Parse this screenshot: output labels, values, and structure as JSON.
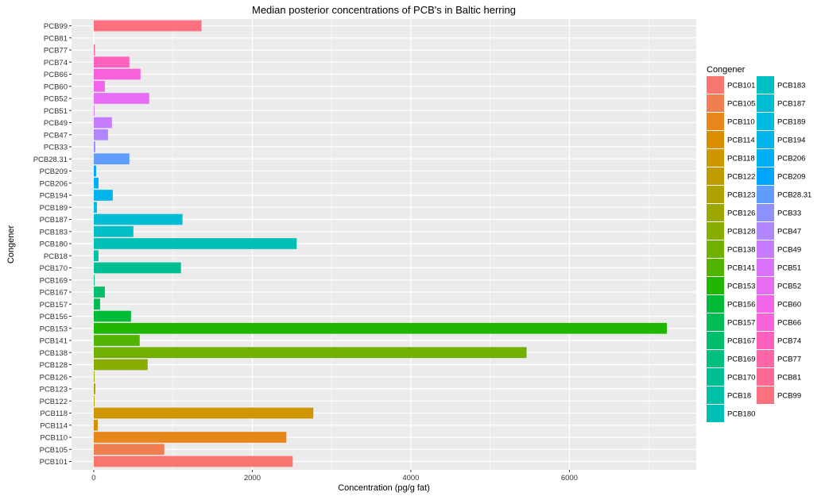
{
  "chart_data": {
    "type": "bar",
    "orientation": "horizontal",
    "title": "Median posterior concentrations of PCB's in Baltic herring",
    "xlabel": "Concentration (pg/g fat)",
    "ylabel": "Congener",
    "xlim": [
      -280,
      7600
    ],
    "xticks": [
      "0",
      "2000",
      "4000",
      "6000"
    ],
    "xtick_values": [
      0,
      2000,
      4000,
      6000
    ],
    "grid": true,
    "legend_title": "Congener",
    "legend_position": "right",
    "categories": [
      "PCB99",
      "PCB81",
      "PCB77",
      "PCB74",
      "PCB66",
      "PCB60",
      "PCB52",
      "PCB51",
      "PCB49",
      "PCB47",
      "PCB33",
      "PCB28.31",
      "PCB209",
      "PCB206",
      "PCB194",
      "PCB189",
      "PCB187",
      "PCB183",
      "PCB180",
      "PCB18",
      "PCB170",
      "PCB169",
      "PCB167",
      "PCB157",
      "PCB156",
      "PCB153",
      "PCB141",
      "PCB138",
      "PCB128",
      "PCB126",
      "PCB123",
      "PCB122",
      "PCB118",
      "PCB114",
      "PCB110",
      "PCB105",
      "PCB101"
    ],
    "values": [
      1360,
      0,
      15,
      450,
      590,
      140,
      700,
      10,
      230,
      180,
      20,
      450,
      30,
      60,
      240,
      40,
      1120,
      500,
      2560,
      60,
      1100,
      10,
      140,
      80,
      470,
      7230,
      580,
      5460,
      680,
      10,
      20,
      10,
      2770,
      50,
      2430,
      890,
      2510
    ],
    "legend_entries": [
      "PCB101",
      "PCB105",
      "PCB110",
      "PCB114",
      "PCB118",
      "PCB122",
      "PCB123",
      "PCB126",
      "PCB128",
      "PCB138",
      "PCB141",
      "PCB153",
      "PCB156",
      "PCB157",
      "PCB167",
      "PCB169",
      "PCB170",
      "PCB18",
      "PCB180",
      "PCB183",
      "PCB187",
      "PCB189",
      "PCB194",
      "PCB206",
      "PCB209",
      "PCB28.31",
      "PCB33",
      "PCB47",
      "PCB49",
      "PCB51",
      "PCB52",
      "PCB60",
      "PCB66",
      "PCB74",
      "PCB77",
      "PCB81",
      "PCB99"
    ],
    "colors": {
      "PCB101": "#F8766D",
      "PCB105": "#F17E50",
      "PCB110": "#E7861B",
      "PCB114": "#DB8E00",
      "PCB118": "#CE9600",
      "PCB122": "#BF9C00",
      "PCB123": "#AEA200",
      "PCB126": "#9DA700",
      "PCB128": "#88AC00",
      "PCB138": "#70B000",
      "PCB141": "#52B400",
      "PCB153": "#1FB700",
      "PCB156": "#00BA38",
      "PCB157": "#00BC55",
      "PCB167": "#00BE6C",
      "PCB169": "#00BF80",
      "PCB170": "#00C093",
      "PCB18": "#00C1A5",
      "PCB180": "#00C0B5",
      "PCB183": "#00BFC4",
      "PCB187": "#00BDD2",
      "PCB189": "#00BADF",
      "PCB194": "#00B5EB",
      "PCB206": "#00B0F6",
      "PCB209": "#00A5FF",
      "PCB28.31": "#619CFF",
      "PCB33": "#8F91FF",
      "PCB47": "#AE87FF",
      "PCB49": "#C77CFF",
      "PCB51": "#DA72FB",
      "PCB52": "#E76BF3",
      "PCB60": "#F265E8",
      "PCB66": "#FA62DB",
      "PCB74": "#FF62BC",
      "PCB77": "#FF65A9",
      "PCB81": "#FF6A95",
      "PCB99": "#FC717F"
    },
    "panel_background": "#EBEBEB",
    "gridline_color": "#FFFFFF"
  }
}
